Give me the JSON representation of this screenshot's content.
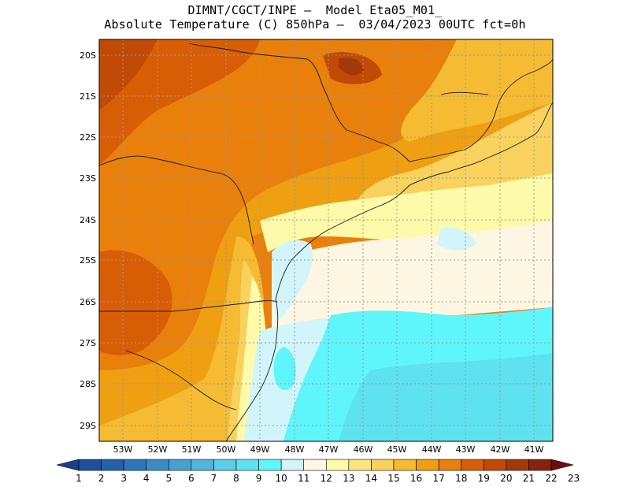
{
  "header": {
    "line1": "DIMNT/CGCT/INPE —  Model Eta05_M01_",
    "line2": "Absolute Temperature (C) 850hPa —  03/04/2023 00UTC fct=0h"
  },
  "axes": {
    "lat_labels": [
      "20S",
      "21S",
      "22S",
      "23S",
      "24S",
      "25S",
      "26S",
      "27S",
      "28S",
      "29S"
    ],
    "lon_labels": [
      "53W",
      "52W",
      "51W",
      "50W",
      "49W",
      "48W",
      "47W",
      "46W",
      "45W",
      "44W",
      "43W",
      "42W",
      "41W"
    ]
  },
  "colorbar": {
    "labels": [
      "1",
      "2",
      "3",
      "4",
      "5",
      "6",
      "7",
      "8",
      "9",
      "10",
      "11",
      "12",
      "13",
      "14",
      "15",
      "16",
      "17",
      "18",
      "19",
      "20",
      "21",
      "22",
      "23"
    ],
    "colors": [
      "#1a3f8f",
      "#1f4f9f",
      "#2462ae",
      "#2c76bb",
      "#3a8cc6",
      "#46a0d0",
      "#52b6dc",
      "#5dcde8",
      "#5fe2f0",
      "#5ff6fb",
      "#d2f5fb",
      "#fdf6e2",
      "#fdfaa9",
      "#fbe581",
      "#f8d25d",
      "#f4bb33",
      "#ef9f12",
      "#e8800b",
      "#d85e06",
      "#c04a06",
      "#a3380b",
      "#86230f",
      "#6a1010"
    ]
  },
  "map": {
    "region": "Southeast and South Brazil",
    "lat_range": [
      -29.5,
      -19.5
    ],
    "lon_range": [
      -53.5,
      -40.5
    ]
  }
}
